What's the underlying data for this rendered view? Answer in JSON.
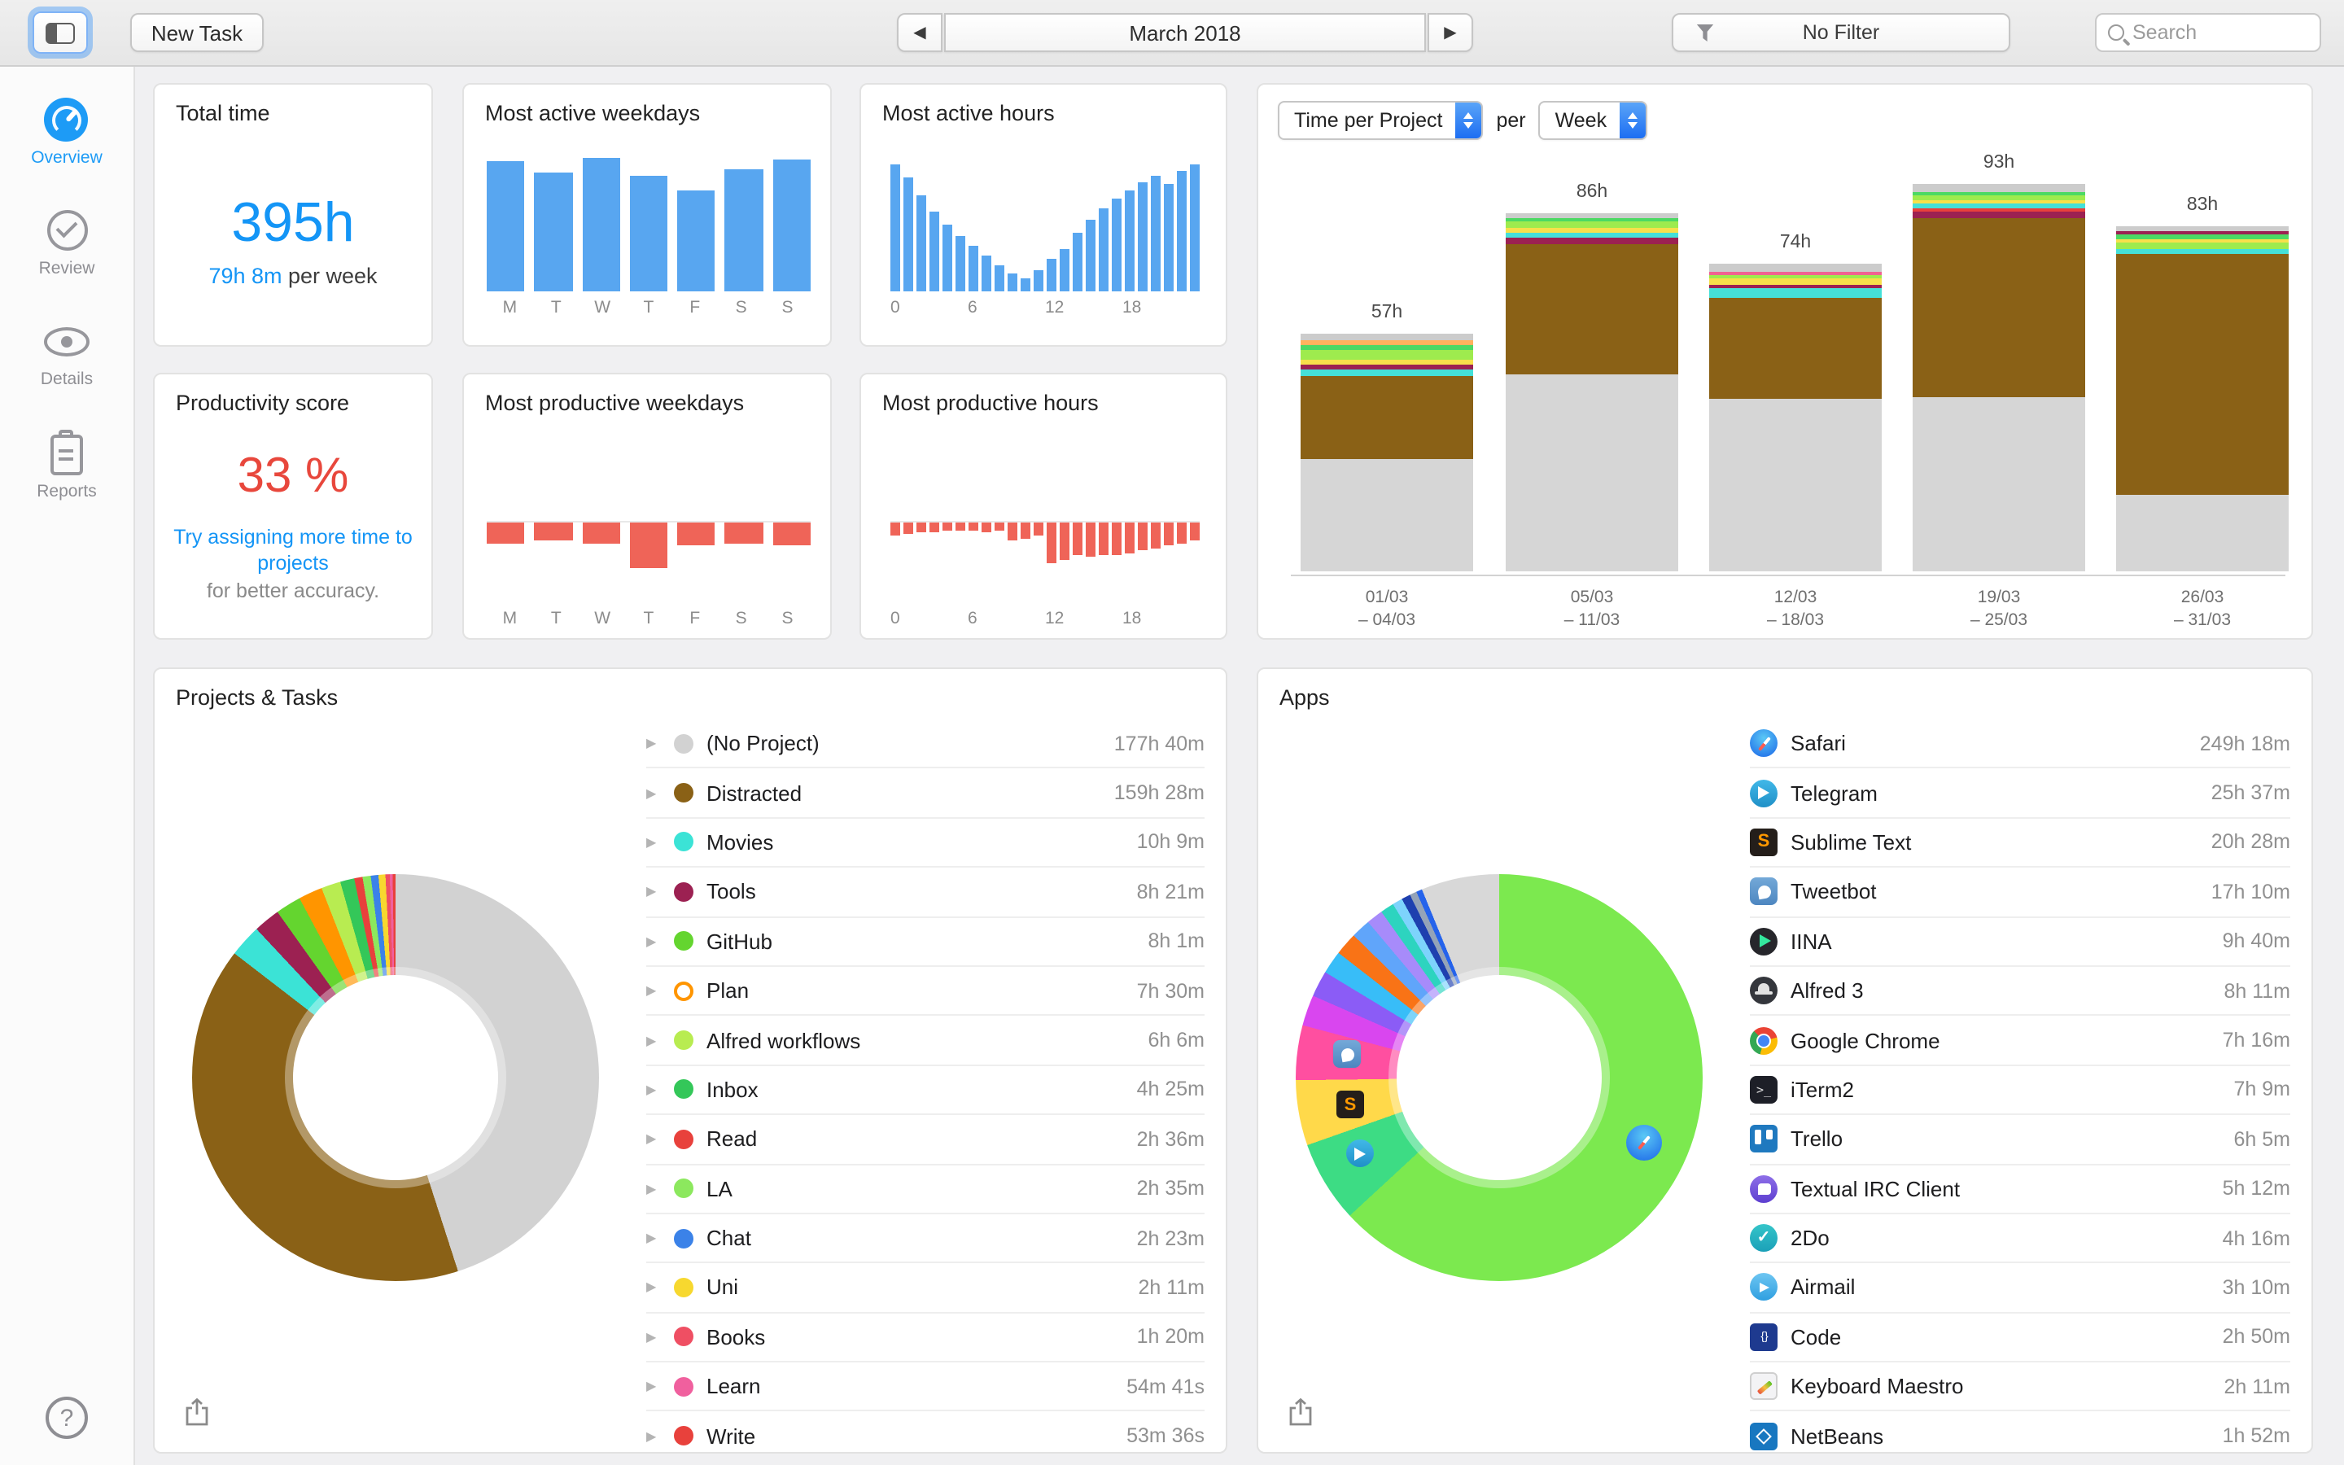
{
  "toolbar": {
    "new_task": "New Task",
    "month": "March 2018",
    "filter": "No Filter",
    "search_placeholder": "Search"
  },
  "sidebar": {
    "items": [
      {
        "id": "overview",
        "label": "Overview",
        "selected": true
      },
      {
        "id": "review",
        "label": "Review",
        "selected": false
      },
      {
        "id": "details",
        "label": "Details",
        "selected": false
      },
      {
        "id": "reports",
        "label": "Reports",
        "selected": false
      }
    ],
    "help_label": "?"
  },
  "total_time": {
    "title": "Total time",
    "value": "395h",
    "per_week_value": "79h 8m",
    "per_week_label": " per week"
  },
  "productivity": {
    "title": "Productivity score",
    "value": "33 %",
    "hint_link": "Try assigning more time to projects",
    "hint_note": "for better accuracy."
  },
  "charts": {
    "active_weekdays": {
      "title": "Most active weekdays",
      "color": "#58a6f0",
      "labels": [
        "M",
        "T",
        "W",
        "T",
        "F",
        "S",
        "S"
      ],
      "values": [
        0.97,
        0.89,
        1,
        0.86,
        0.75,
        0.92,
        0.99
      ]
    },
    "active_hours": {
      "title": "Most active hours",
      "color": "#58a6f0",
      "tick_labels": [
        "0",
        "6",
        "12",
        "18"
      ],
      "tick_positions": [
        0,
        6,
        12,
        18
      ],
      "values": [
        0.95,
        0.85,
        0.72,
        0.6,
        0.5,
        0.42,
        0.34,
        0.27,
        0.2,
        0.13,
        0.1,
        0.16,
        0.24,
        0.32,
        0.44,
        0.54,
        0.62,
        0.7,
        0.76,
        0.82,
        0.87,
        0.8,
        0.9,
        0.95
      ]
    },
    "productive_weekdays": {
      "title": "Most productive weekdays",
      "color": "#ef6458",
      "labels": [
        "M",
        "T",
        "W",
        "T",
        "F",
        "S",
        "S"
      ],
      "values": [
        0.45,
        0.4,
        0.45,
        1,
        0.5,
        0.45,
        0.5
      ]
    },
    "productive_hours": {
      "title": "Most productive hours",
      "color": "#ef6458",
      "tick_labels": [
        "0",
        "6",
        "12",
        "18"
      ],
      "tick_positions": [
        0,
        6,
        12,
        18
      ],
      "values": [
        0.32,
        0.28,
        0.25,
        0.22,
        0.2,
        0.18,
        0.2,
        0.22,
        0.18,
        0.42,
        0.38,
        0.32,
        1,
        0.92,
        0.78,
        0.84,
        0.78,
        0.8,
        0.75,
        0.68,
        0.62,
        0.56,
        0.5,
        0.45
      ]
    },
    "time_per_project": {
      "select_metric": "Time per Project",
      "per_label": "per",
      "select_interval": "Week",
      "bars": [
        {
          "label": "57h",
          "hours": 57,
          "x1": "01/03",
          "x2": "– 04/03",
          "segments": [
            {
              "c": "#d6d6d6",
              "f": 0.47
            },
            {
              "c": "#8a6116",
              "f": 0.35
            },
            {
              "c": "#45e0d8",
              "f": 0.027
            },
            {
              "c": "#9c2152",
              "f": 0.02
            },
            {
              "c": "#f7e04b",
              "f": 0.02
            },
            {
              "c": "#9eeb4e",
              "f": 0.047
            },
            {
              "c": "#4cd964",
              "f": 0.02
            },
            {
              "c": "#ffb25e",
              "f": 0.02
            },
            {
              "c": "#cccccc",
              "f": 0.026
            }
          ]
        },
        {
          "label": "86h",
          "hours": 86,
          "x1": "05/03",
          "x2": "– 11/03",
          "segments": [
            {
              "c": "#d6d6d6",
              "f": 0.55
            },
            {
              "c": "#8a6116",
              "f": 0.36
            },
            {
              "c": "#9c2152",
              "f": 0.022
            },
            {
              "c": "#45e0d8",
              "f": 0.013
            },
            {
              "c": "#f7e04b",
              "f": 0.013
            },
            {
              "c": "#9eeb4e",
              "f": 0.018
            },
            {
              "c": "#4cd964",
              "f": 0.009
            },
            {
              "c": "#cccccc",
              "f": 0.013
            }
          ]
        },
        {
          "label": "74h",
          "hours": 74,
          "x1": "12/03",
          "x2": "– 18/03",
          "segments": [
            {
              "c": "#d6d6d6",
              "f": 0.56
            },
            {
              "c": "#8a6116",
              "f": 0.33
            },
            {
              "c": "#45e0d8",
              "f": 0.03
            },
            {
              "c": "#9c2152",
              "f": 0.01
            },
            {
              "c": "#f7e04b",
              "f": 0.02
            },
            {
              "c": "#9eeb4e",
              "f": 0.015
            },
            {
              "c": "#f06292",
              "f": 0.01
            },
            {
              "c": "#cccccc",
              "f": 0.025
            }
          ]
        },
        {
          "label": "93h",
          "hours": 93,
          "x1": "19/03",
          "x2": "– 25/03",
          "segments": [
            {
              "c": "#d6d6d6",
              "f": 0.45
            },
            {
              "c": "#8a6116",
              "f": 0.46
            },
            {
              "c": "#9c2152",
              "f": 0.016
            },
            {
              "c": "#e8413c",
              "f": 0.008
            },
            {
              "c": "#45e0d8",
              "f": 0.012
            },
            {
              "c": "#f7e04b",
              "f": 0.012
            },
            {
              "c": "#9eeb4e",
              "f": 0.012
            },
            {
              "c": "#4cd964",
              "f": 0.008
            },
            {
              "c": "#cccccc",
              "f": 0.02
            }
          ]
        },
        {
          "label": "83h",
          "hours": 83,
          "x1": "26/03",
          "x2": "– 31/03",
          "segments": [
            {
              "c": "#d6d6d6",
              "f": 0.22
            },
            {
              "c": "#8a6116",
              "f": 0.7
            },
            {
              "c": "#45e0d8",
              "f": 0.013
            },
            {
              "c": "#9eeb4e",
              "f": 0.018
            },
            {
              "c": "#f7e04b",
              "f": 0.013
            },
            {
              "c": "#4cd964",
              "f": 0.013
            },
            {
              "c": "#9c2152",
              "f": 0.009
            },
            {
              "c": "#cccccc",
              "f": 0.014
            }
          ]
        }
      ]
    }
  },
  "projects": {
    "title": "Projects & Tasks",
    "rows": [
      {
        "name": "(No Project)",
        "time": "177h 40m",
        "hours": 177.67,
        "color": "#d2d2d2"
      },
      {
        "name": "Distracted",
        "time": "159h 28m",
        "hours": 159.47,
        "color": "#8a6116"
      },
      {
        "name": "Movies",
        "time": "10h 9m",
        "hours": 10.15,
        "color": "#3be3d6"
      },
      {
        "name": "Tools",
        "time": "8h 21m",
        "hours": 8.35,
        "color": "#9c2152"
      },
      {
        "name": "GitHub",
        "time": "8h 1m",
        "hours": 8.02,
        "color": "#64d52f"
      },
      {
        "name": "Plan",
        "time": "7h 30m",
        "hours": 7.5,
        "color": "#ff9500",
        "hollow": true
      },
      {
        "name": "Alfred workflows",
        "time": "6h 6m",
        "hours": 6.1,
        "color": "#b8ec51"
      },
      {
        "name": "Inbox",
        "time": "4h 25m",
        "hours": 4.42,
        "color": "#34c759"
      },
      {
        "name": "Read",
        "time": "2h 36m",
        "hours": 2.6,
        "color": "#e8413c"
      },
      {
        "name": "LA",
        "time": "2h 35m",
        "hours": 2.58,
        "color": "#8ce85e"
      },
      {
        "name": "Chat",
        "time": "2h 23m",
        "hours": 2.38,
        "color": "#3b82e8"
      },
      {
        "name": "Uni",
        "time": "2h 11m",
        "hours": 2.18,
        "color": "#f7d82f"
      },
      {
        "name": "Books",
        "time": "1h 20m",
        "hours": 1.33,
        "color": "#ef4f63"
      },
      {
        "name": "Learn",
        "time": "54m 41s",
        "hours": 0.91,
        "color": "#f0609e"
      },
      {
        "name": "Write",
        "time": "53m 36s",
        "hours": 0.89,
        "color": "#e8413c"
      }
    ]
  },
  "apps": {
    "title": "Apps",
    "rows": [
      {
        "name": "Safari",
        "time": "249h 18m",
        "hours": 249.3,
        "icon": "safari",
        "color": "#7ce94f"
      },
      {
        "name": "Telegram",
        "time": "25h 37m",
        "hours": 25.62,
        "icon": "telegram",
        "color": "#3ddc84"
      },
      {
        "name": "Sublime Text",
        "time": "20h 28m",
        "hours": 20.47,
        "icon": "sublime",
        "color": "#ffd94a"
      },
      {
        "name": "Tweetbot",
        "time": "17h 10m",
        "hours": 17.17,
        "icon": "tweetbot",
        "color": "#ff4fa0"
      },
      {
        "name": "IINA",
        "time": "9h 40m",
        "hours": 9.67,
        "icon": "iina",
        "color": "#d946ef"
      },
      {
        "name": "Alfred 3",
        "time": "8h 11m",
        "hours": 8.18,
        "icon": "alfred",
        "color": "#8b5cf6"
      },
      {
        "name": "Google Chrome",
        "time": "7h 16m",
        "hours": 7.27,
        "icon": "chrome",
        "color": "#38bdf8"
      },
      {
        "name": "iTerm2",
        "time": "7h 9m",
        "hours": 7.15,
        "icon": "iterm",
        "color": "#f97316"
      },
      {
        "name": "Trello",
        "time": "6h 5m",
        "hours": 6.08,
        "icon": "trello",
        "color": "#60a5fa"
      },
      {
        "name": "Textual IRC Client",
        "time": "5h 12m",
        "hours": 5.2,
        "icon": "textual",
        "color": "#a78bfa"
      },
      {
        "name": "2Do",
        "time": "4h 16m",
        "hours": 4.27,
        "icon": "2do",
        "color": "#2dd4bf"
      },
      {
        "name": "Airmail",
        "time": "3h 10m",
        "hours": 3.17,
        "icon": "airmail",
        "color": "#7dd3fc"
      },
      {
        "name": "Code",
        "time": "2h 50m",
        "hours": 2.83,
        "icon": "code",
        "color": "#1e40af"
      },
      {
        "name": "Keyboard Maestro",
        "time": "2h 11m",
        "hours": 2.18,
        "icon": "km",
        "color": "#94a3b8"
      },
      {
        "name": "NetBeans",
        "time": "1h 52m",
        "hours": 1.87,
        "icon": "netbeans",
        "color": "#2563eb"
      }
    ],
    "other_hours": 24.5
  }
}
